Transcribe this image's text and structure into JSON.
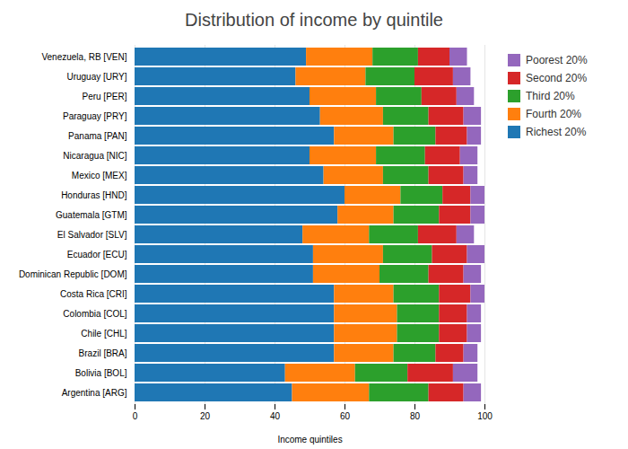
{
  "chart_data": {
    "type": "bar",
    "orientation": "horizontal",
    "stacked": true,
    "title": "Distribution of income by quintile",
    "x_label": "Income quintiles",
    "categories": [
      "Argentina [ARG]",
      "Bolivia [BOL]",
      "Brazil [BRA]",
      "Chile [CHL]",
      "Colombia [COL]",
      "Costa Rica [CRI]",
      "Dominican Republic [DOM]",
      "Ecuador [ECU]",
      "El Salvador [SLV]",
      "Guatemala [GTM]",
      "Honduras [HND]",
      "Mexico [MEX]",
      "Nicaragua [NIC]",
      "Panama [PAN]",
      "Paraguay [PRY]",
      "Peru [PER]",
      "Uruguay [URY]",
      "Venezuela, RB [VEN]"
    ],
    "series": [
      {
        "name": "Richest 20%",
        "color": "#1f77b4",
        "values": [
          45,
          43,
          57,
          57,
          57,
          57,
          51,
          51,
          48,
          58,
          60,
          54,
          50,
          57,
          53,
          50,
          46,
          49
        ]
      },
      {
        "name": "Fourth 20%",
        "color": "#ff7f0e",
        "values": [
          22,
          20,
          17,
          18,
          18,
          17,
          19,
          20,
          19,
          16,
          16,
          17,
          19,
          17,
          18,
          19,
          20,
          19
        ]
      },
      {
        "name": "Third 20%",
        "color": "#2ca02c",
        "values": [
          17,
          15,
          12,
          12,
          12,
          13,
          14,
          14,
          14,
          13,
          12,
          13,
          14,
          12,
          13,
          13,
          14,
          13
        ]
      },
      {
        "name": "Second 20%",
        "color": "#d62728",
        "values": [
          10,
          13,
          8,
          8,
          8,
          9,
          10,
          10,
          11,
          9,
          8,
          10,
          10,
          9,
          10,
          10,
          11,
          9
        ]
      },
      {
        "name": "Poorest 20%",
        "color": "#9467bd",
        "values": [
          5,
          7,
          4,
          4,
          4,
          4,
          5,
          5,
          5,
          4,
          4,
          4,
          5,
          4,
          5,
          5,
          5,
          5
        ]
      }
    ],
    "xlim": [
      0,
      100
    ],
    "xticks": [
      0,
      20,
      40,
      60,
      80,
      100
    ],
    "grid": true,
    "legend": "right"
  }
}
